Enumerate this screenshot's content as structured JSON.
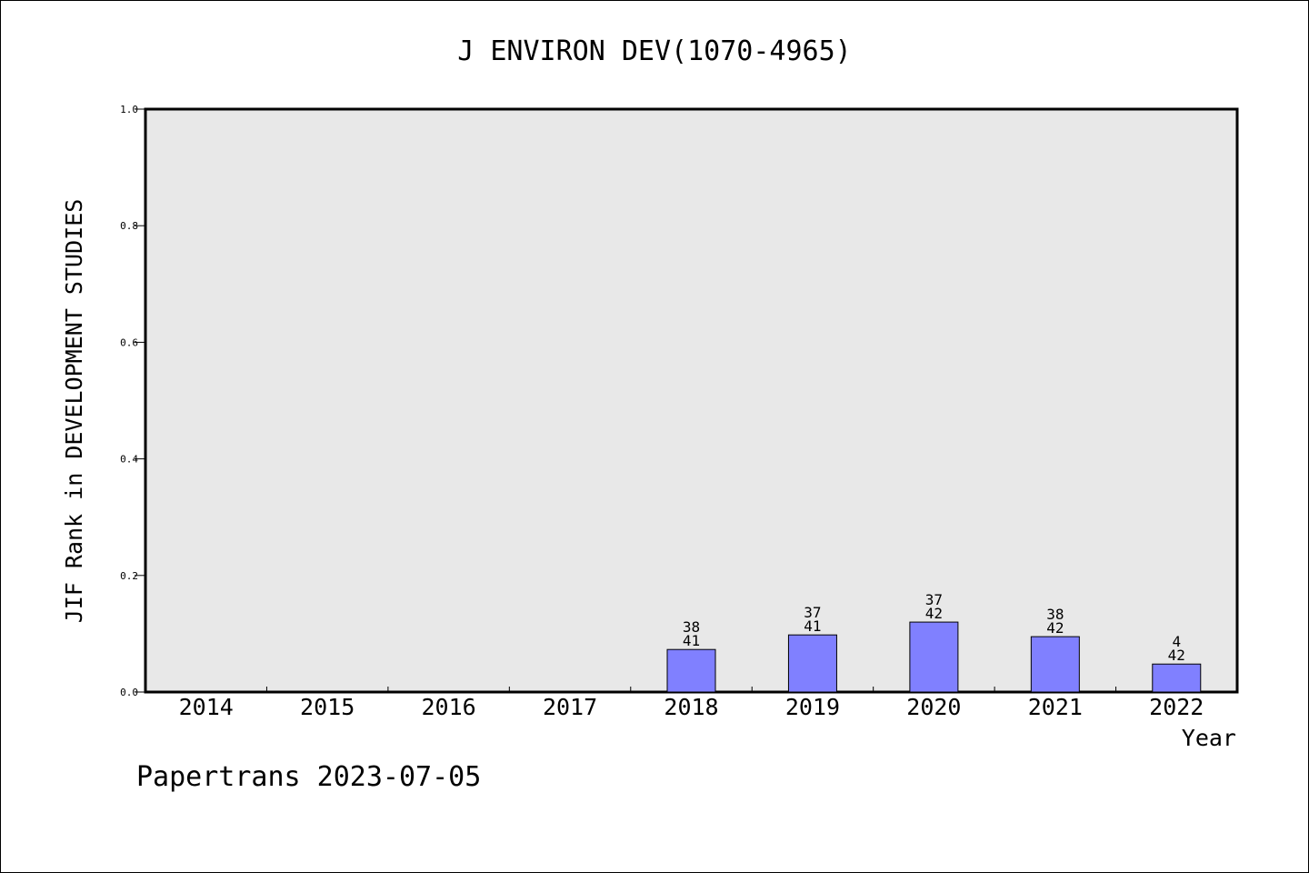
{
  "chart_data": {
    "type": "bar",
    "title": "J ENVIRON DEV(1070-4965)",
    "xlabel": "Year",
    "ylabel": "JIF Rank in DEVELOPMENT STUDIES",
    "ylim": [
      0,
      1.0
    ],
    "yticks": [
      "0.0",
      "0.2",
      "0.4",
      "0.6",
      "0.8",
      "1.0"
    ],
    "categories": [
      "2014",
      "2015",
      "2016",
      "2017",
      "2018",
      "2019",
      "2020",
      "2021",
      "2022"
    ],
    "values": [
      null,
      null,
      null,
      null,
      0.073,
      0.098,
      0.12,
      0.095,
      0.048
    ],
    "labels_top": [
      "",
      "",
      "",
      "",
      "38",
      "37",
      "37",
      "38",
      "4"
    ],
    "labels_bottom": [
      "",
      "",
      "",
      "",
      "41",
      "41",
      "42",
      "42",
      "42"
    ],
    "bar_color": "#8080ff",
    "plot_bg": "#e8e8e8",
    "grid": false
  },
  "footer": "Papertrans 2023-07-05"
}
